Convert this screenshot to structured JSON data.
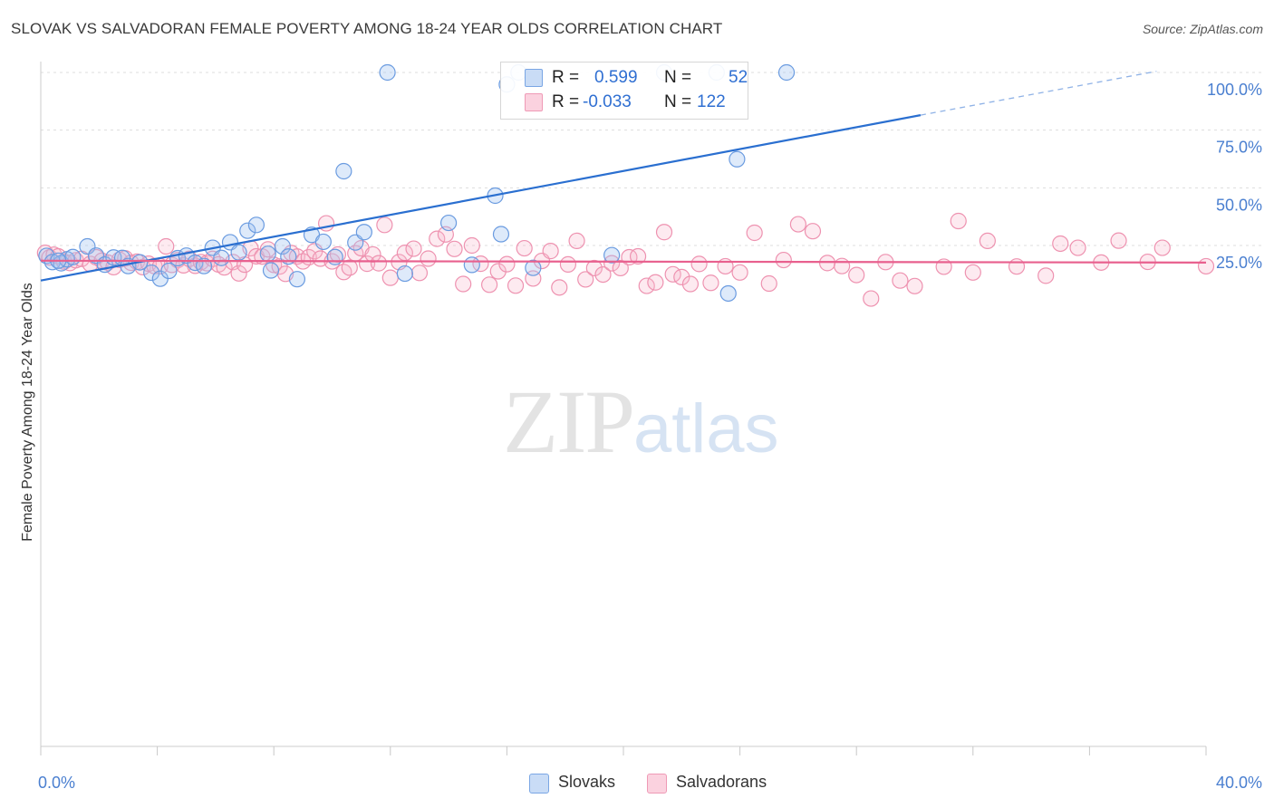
{
  "header": {
    "title": "SLOVAK VS SALVADORAN FEMALE POVERTY AMONG 18-24 YEAR OLDS CORRELATION CHART",
    "source": "Source: ZipAtlas.com"
  },
  "watermark": {
    "zip": "ZIP",
    "atlas": "atlas"
  },
  "legend": {
    "rows": [
      {
        "r_label": "R =",
        "r_value": "0.599",
        "n_label": "N =",
        "n_value": "52",
        "color": "#a9c7f0"
      },
      {
        "r_label": "R =",
        "r_value": "-0.033",
        "n_label": "N =",
        "n_value": "122",
        "color": "#f7b8cc"
      }
    ]
  },
  "bottom_legend": {
    "slovaks": "Slovaks",
    "salvadorans": "Salvadorans"
  },
  "colors": {
    "slovak_fill": "rgba(160,195,240,0.35)",
    "slovak_stroke": "#6a9be0",
    "slovak_line": "#2a6fd0",
    "salv_fill": "rgba(247,184,204,0.30)",
    "salv_stroke": "#ee92b0",
    "salv_line": "#e8608e",
    "grid": "#dddddd",
    "tick": "#4a7fd0"
  },
  "chart_data": {
    "type": "scatter",
    "title": "SLOVAK VS SALVADORAN FEMALE POVERTY AMONG 18-24 YEAR OLDS CORRELATION CHART",
    "xlabel": "",
    "ylabel": "Female Poverty Among 18-24 Year Olds",
    "xlim": [
      0,
      40
    ],
    "ylim": [
      0,
      105
    ],
    "x_tick_labels": [
      "0.0%",
      "40.0%"
    ],
    "y_ticks": [
      25,
      50,
      75,
      100
    ],
    "y_tick_labels": [
      "25.0%",
      "50.0%",
      "75.0%",
      "100.0%"
    ],
    "grid": true,
    "legend_position": "top-center",
    "series": [
      {
        "name": "Slovaks",
        "r": 0.599,
        "n": 52,
        "trend": {
          "x0": 0,
          "y0": 9.8,
          "x1": 30.2,
          "y1": 81.5,
          "dashed_to_x": 38.3,
          "dashed_to_y": 100.5
        },
        "points": [
          [
            0.2,
            20.5
          ],
          [
            0.4,
            17.8
          ],
          [
            0.7,
            17.3
          ],
          [
            0.9,
            19.0
          ],
          [
            1.1,
            20.0
          ],
          [
            1.6,
            24.6
          ],
          [
            1.9,
            20.6
          ],
          [
            2.2,
            16.7
          ],
          [
            2.5,
            19.8
          ],
          [
            2.8,
            19.6
          ],
          [
            3.0,
            16.1
          ],
          [
            3.4,
            17.7
          ],
          [
            3.8,
            13.2
          ],
          [
            4.1,
            10.6
          ],
          [
            4.4,
            14.0
          ],
          [
            4.7,
            19.5
          ],
          [
            5.0,
            20.6
          ],
          [
            5.3,
            17.5
          ],
          [
            5.6,
            16.1
          ],
          [
            5.9,
            24.0
          ],
          [
            6.2,
            19.6
          ],
          [
            6.5,
            26.4
          ],
          [
            6.8,
            22.0
          ],
          [
            7.1,
            31.4
          ],
          [
            7.4,
            33.9
          ],
          [
            7.8,
            21.4
          ],
          [
            7.9,
            14.2
          ],
          [
            8.3,
            24.6
          ],
          [
            8.5,
            20.2
          ],
          [
            8.8,
            10.4
          ],
          [
            9.3,
            29.6
          ],
          [
            9.7,
            26.6
          ],
          [
            10.1,
            20.0
          ],
          [
            10.4,
            57.2
          ],
          [
            10.8,
            26.3
          ],
          [
            11.1,
            30.8
          ],
          [
            11.9,
            100.0
          ],
          [
            12.5,
            12.8
          ],
          [
            14.0,
            34.8
          ],
          [
            14.8,
            16.6
          ],
          [
            15.6,
            46.6
          ],
          [
            15.8,
            29.9
          ],
          [
            16.0,
            94.8
          ],
          [
            16.4,
            100.0
          ],
          [
            16.9,
            15.3
          ],
          [
            19.6,
            20.8
          ],
          [
            21.4,
            100.0
          ],
          [
            23.2,
            100.0
          ],
          [
            23.6,
            4.2
          ],
          [
            23.9,
            62.4
          ],
          [
            25.6,
            100.0
          ],
          [
            0.6,
            18.4
          ]
        ]
      },
      {
        "name": "Salvadorans",
        "r": -0.033,
        "n": 122,
        "trend": {
          "x0": 0,
          "y0": 18.4,
          "x1": 40,
          "y1": 17.6
        },
        "points": [
          [
            0.15,
            21.8
          ],
          [
            0.3,
            19.8
          ],
          [
            0.45,
            21.0
          ],
          [
            0.6,
            20.3
          ],
          [
            0.8,
            18.0
          ],
          [
            1.0,
            17.4
          ],
          [
            1.2,
            18.6
          ],
          [
            1.4,
            19.2
          ],
          [
            1.7,
            17.0
          ],
          [
            1.9,
            19.9
          ],
          [
            2.1,
            18.4
          ],
          [
            2.3,
            17.6
          ],
          [
            2.5,
            15.6
          ],
          [
            2.7,
            18.8
          ],
          [
            2.9,
            19.4
          ],
          [
            3.1,
            17.5
          ],
          [
            3.3,
            18.0
          ],
          [
            3.5,
            15.6
          ],
          [
            3.7,
            17.1
          ],
          [
            3.9,
            16.1
          ],
          [
            4.1,
            16.0
          ],
          [
            4.3,
            24.6
          ],
          [
            4.5,
            16.6
          ],
          [
            4.7,
            18.7
          ],
          [
            4.9,
            16.4
          ],
          [
            5.1,
            19.2
          ],
          [
            5.3,
            16.2
          ],
          [
            5.5,
            17.8
          ],
          [
            5.7,
            17.3
          ],
          [
            5.9,
            19.2
          ],
          [
            6.1,
            16.8
          ],
          [
            6.3,
            15.5
          ],
          [
            6.6,
            17.8
          ],
          [
            6.8,
            12.9
          ],
          [
            7.0,
            16.7
          ],
          [
            7.2,
            23.8
          ],
          [
            7.4,
            20.3
          ],
          [
            7.6,
            20.2
          ],
          [
            7.8,
            23.3
          ],
          [
            8.0,
            16.6
          ],
          [
            8.2,
            15.9
          ],
          [
            8.4,
            12.7
          ],
          [
            8.6,
            21.7
          ],
          [
            8.8,
            20.2
          ],
          [
            9.0,
            18.1
          ],
          [
            9.2,
            19.9
          ],
          [
            9.4,
            22.5
          ],
          [
            9.6,
            19.3
          ],
          [
            9.8,
            34.6
          ],
          [
            10.0,
            18.1
          ],
          [
            10.2,
            21.1
          ],
          [
            10.4,
            13.5
          ],
          [
            10.6,
            15.4
          ],
          [
            10.8,
            21.6
          ],
          [
            11.0,
            23.8
          ],
          [
            11.2,
            17.1
          ],
          [
            11.4,
            21.1
          ],
          [
            11.6,
            17.3
          ],
          [
            11.8,
            33.9
          ],
          [
            12.0,
            11.0
          ],
          [
            12.3,
            17.8
          ],
          [
            12.5,
            21.8
          ],
          [
            12.8,
            23.6
          ],
          [
            13.0,
            13.1
          ],
          [
            13.3,
            19.3
          ],
          [
            13.6,
            27.9
          ],
          [
            13.9,
            29.8
          ],
          [
            14.2,
            23.5
          ],
          [
            14.5,
            8.3
          ],
          [
            14.8,
            25.0
          ],
          [
            15.1,
            17.1
          ],
          [
            15.4,
            8.0
          ],
          [
            15.7,
            13.8
          ],
          [
            16.0,
            16.9
          ],
          [
            16.3,
            7.6
          ],
          [
            16.6,
            23.8
          ],
          [
            16.9,
            10.7
          ],
          [
            17.2,
            18.3
          ],
          [
            17.5,
            22.6
          ],
          [
            17.8,
            6.8
          ],
          [
            18.1,
            16.8
          ],
          [
            18.4,
            27.0
          ],
          [
            18.7,
            10.3
          ],
          [
            19.0,
            15.2
          ],
          [
            19.3,
            12.4
          ],
          [
            19.6,
            17.3
          ],
          [
            19.9,
            15.2
          ],
          [
            20.2,
            19.9
          ],
          [
            20.5,
            20.3
          ],
          [
            20.8,
            7.5
          ],
          [
            21.1,
            9.0
          ],
          [
            21.4,
            30.8
          ],
          [
            21.7,
            12.5
          ],
          [
            22.0,
            11.3
          ],
          [
            22.3,
            8.3
          ],
          [
            22.6,
            17.0
          ],
          [
            23.0,
            8.8
          ],
          [
            23.5,
            16.0
          ],
          [
            24.0,
            13.3
          ],
          [
            24.5,
            30.5
          ],
          [
            25.0,
            8.5
          ],
          [
            25.5,
            18.7
          ],
          [
            26.0,
            34.2
          ],
          [
            26.5,
            31.2
          ],
          [
            27.0,
            17.4
          ],
          [
            27.5,
            16.1
          ],
          [
            28.0,
            12.2
          ],
          [
            28.5,
            2.0
          ],
          [
            29.0,
            17.8
          ],
          [
            29.5,
            9.8
          ],
          [
            30.0,
            7.4
          ],
          [
            31.0,
            15.8
          ],
          [
            31.5,
            35.6
          ],
          [
            32.0,
            13.3
          ],
          [
            32.5,
            27.0
          ],
          [
            33.5,
            15.9
          ],
          [
            34.5,
            11.9
          ],
          [
            35.0,
            25.8
          ],
          [
            35.6,
            24.0
          ],
          [
            36.4,
            17.6
          ],
          [
            37.0,
            27.1
          ],
          [
            38.0,
            17.9
          ],
          [
            38.5,
            24.0
          ],
          [
            40.0,
            16.0
          ]
        ]
      }
    ]
  }
}
